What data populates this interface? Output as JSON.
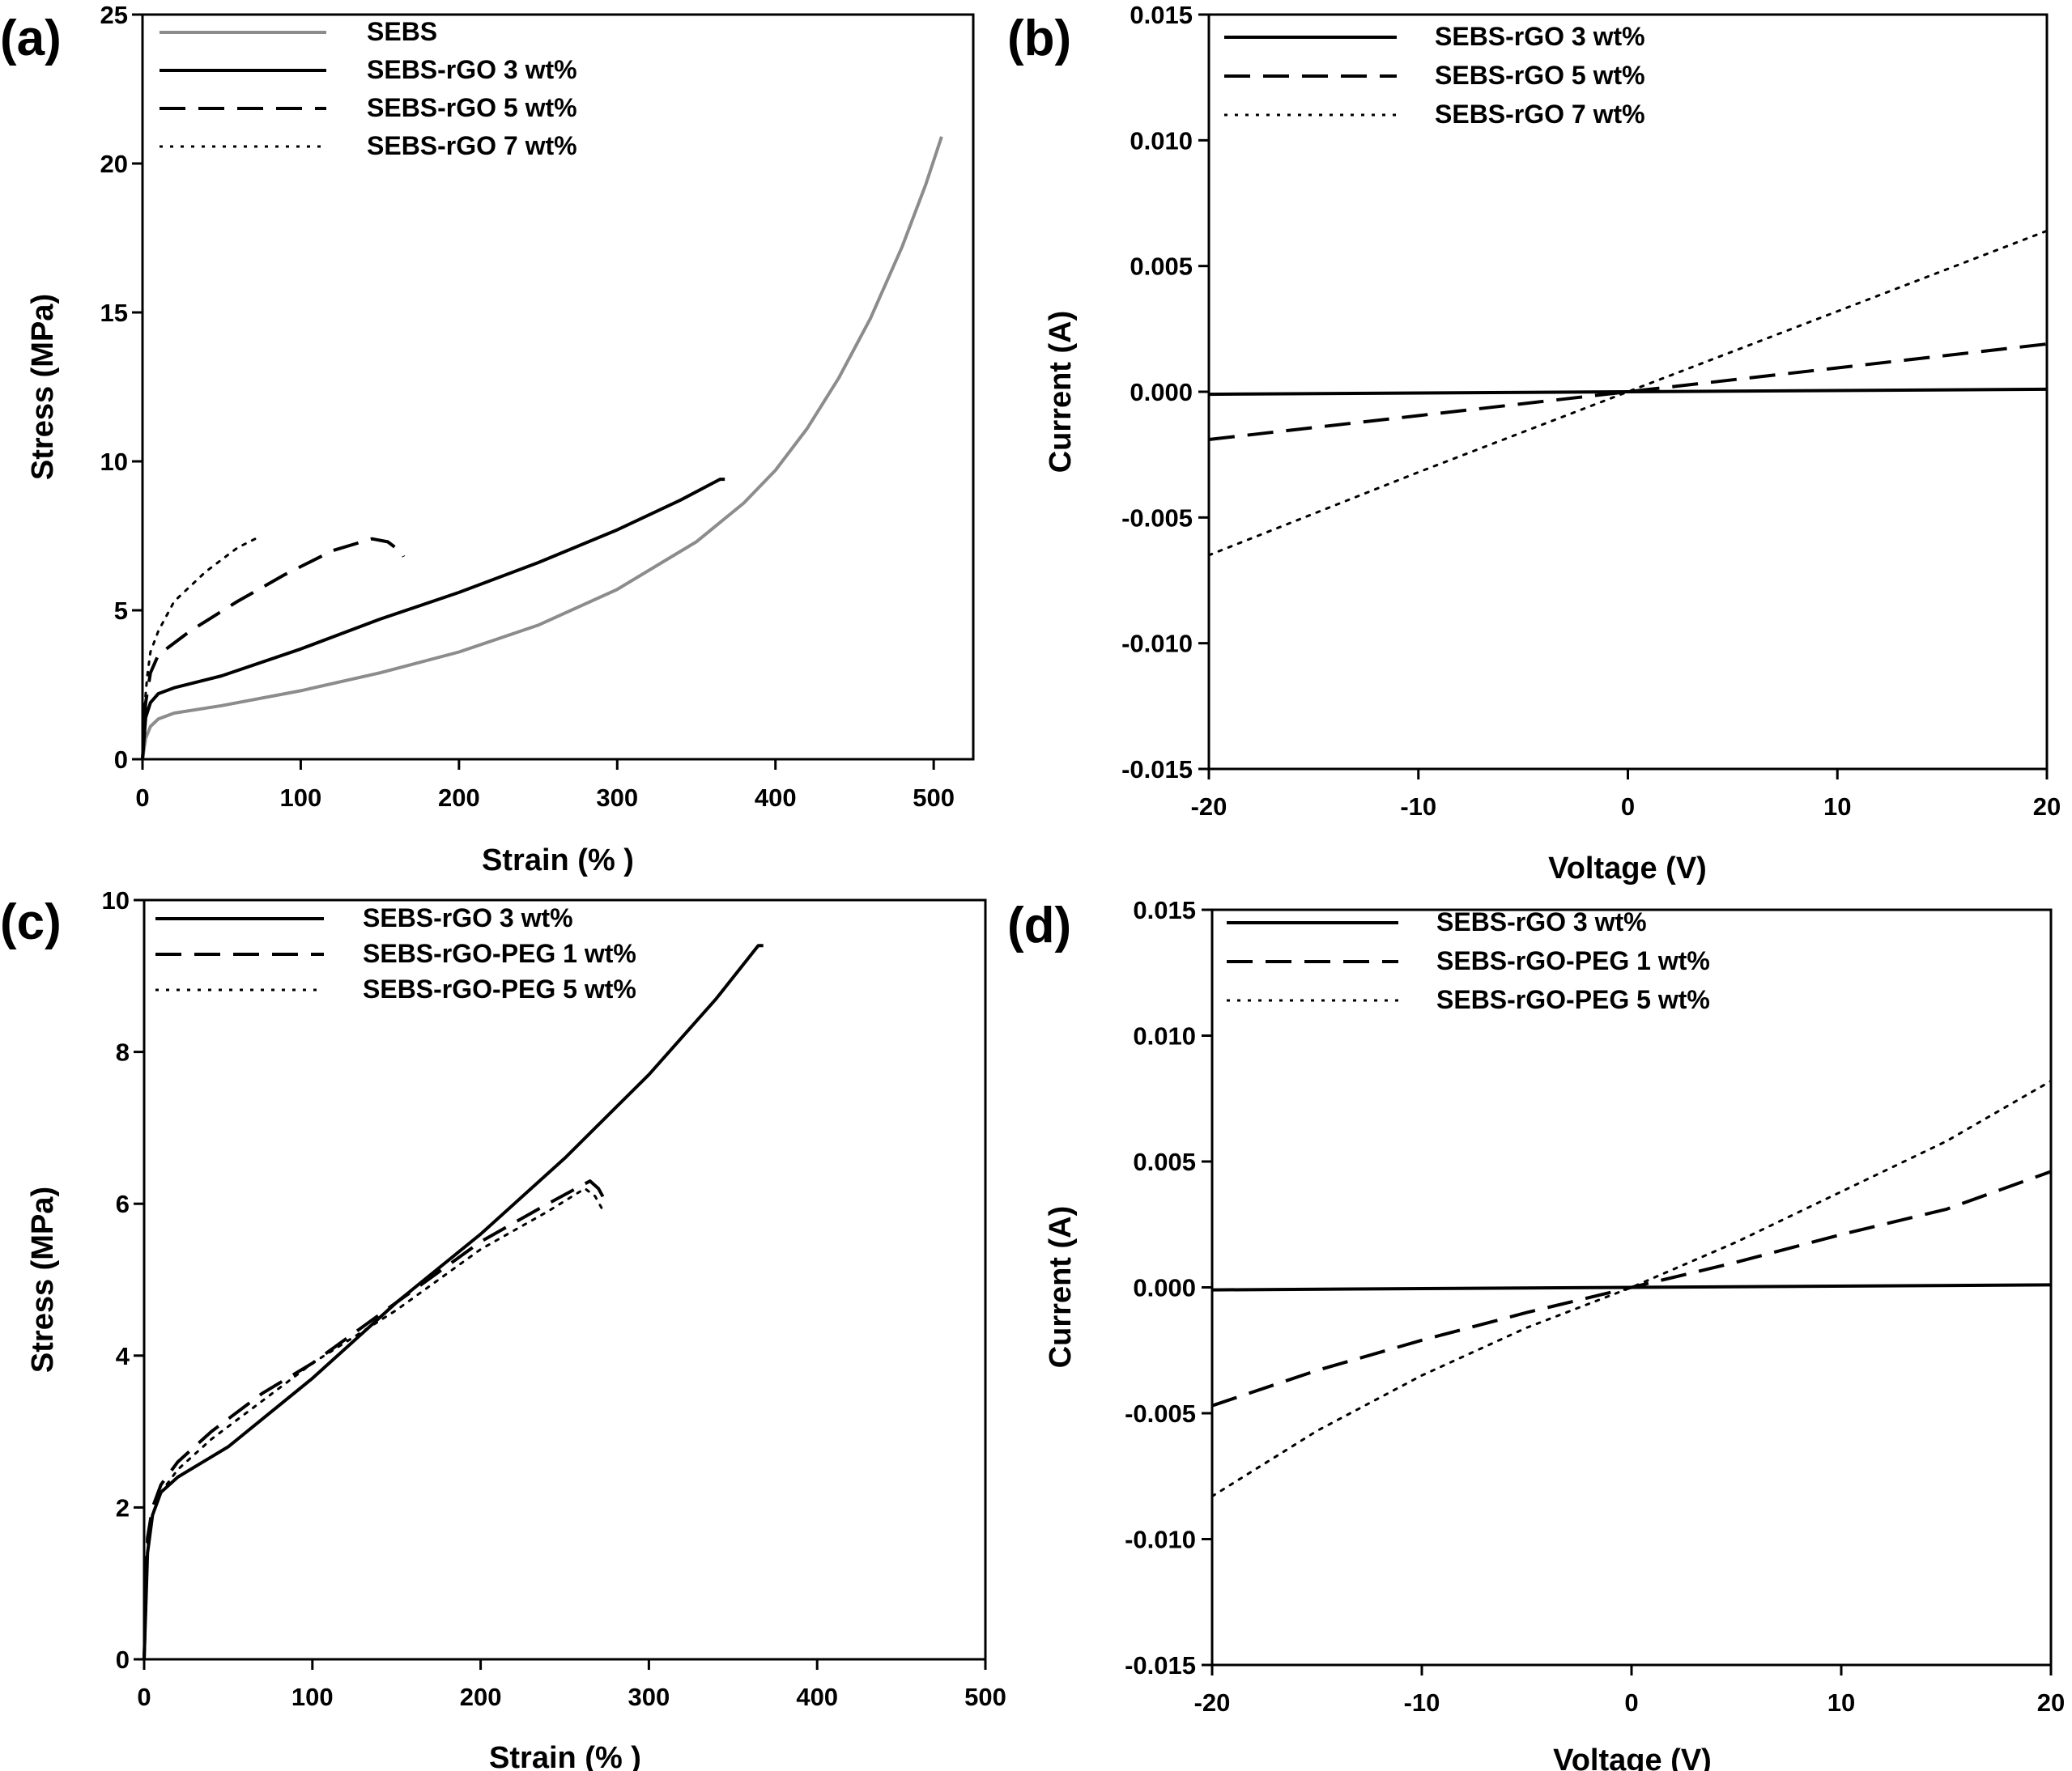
{
  "chart_data": [
    {
      "id": "a",
      "panel_label": "(a)",
      "type": "line",
      "xlabel": "Strain (% )",
      "ylabel": "Stress (MPa)",
      "xlim": [
        0,
        525
      ],
      "ylim": [
        0,
        25
      ],
      "xticks": [
        0,
        100,
        200,
        300,
        400,
        500
      ],
      "yticks": [
        0,
        5,
        10,
        15,
        20,
        25
      ],
      "xtick_labels": [
        "0",
        "100",
        "200",
        "300",
        "400",
        "500"
      ],
      "ytick_labels": [
        "0",
        "5",
        "10",
        "15",
        "20",
        "25"
      ],
      "legend_position": "top-left",
      "grid": false,
      "series": [
        {
          "name": "SEBS",
          "style": "solid",
          "color": "#8c8c8c",
          "x": [
            0,
            2,
            5,
            10,
            20,
            50,
            100,
            150,
            200,
            250,
            300,
            350,
            380,
            400,
            420,
            440,
            460,
            480,
            495,
            505
          ],
          "y": [
            0,
            0.7,
            1.1,
            1.35,
            1.55,
            1.8,
            2.3,
            2.9,
            3.6,
            4.5,
            5.7,
            7.3,
            8.6,
            9.7,
            11.1,
            12.8,
            14.8,
            17.2,
            19.3,
            20.9
          ]
        },
        {
          "name": "SEBS-rGO 3 wt%",
          "style": "solid",
          "color": "#000000",
          "x": [
            0,
            2,
            5,
            10,
            20,
            50,
            100,
            150,
            200,
            250,
            300,
            340,
            365,
            368
          ],
          "y": [
            0,
            1.4,
            1.9,
            2.2,
            2.4,
            2.8,
            3.7,
            4.7,
            5.6,
            6.6,
            7.7,
            8.7,
            9.4,
            9.4
          ]
        },
        {
          "name": "SEBS-rGO 5 wt%",
          "style": "dashed",
          "color": "#000000",
          "x": [
            0,
            2,
            5,
            10,
            15,
            30,
            60,
            90,
            120,
            145,
            155,
            160,
            163,
            165
          ],
          "y": [
            0,
            1.9,
            2.9,
            3.5,
            3.7,
            4.3,
            5.3,
            6.2,
            7.0,
            7.4,
            7.3,
            7.1,
            7.0,
            6.8
          ]
        },
        {
          "name": "SEBS-rGO 7 wt%",
          "style": "dotted",
          "color": "#000000",
          "x": [
            0,
            1,
            3,
            5,
            10,
            20,
            40,
            60,
            75
          ],
          "y": [
            0,
            1.6,
            2.8,
            3.6,
            4.3,
            5.3,
            6.3,
            7.1,
            7.5
          ]
        }
      ]
    },
    {
      "id": "b",
      "panel_label": "(b)",
      "type": "line",
      "xlabel": "Voltage (V)",
      "ylabel": "Current (A)",
      "xlim": [
        -20,
        20
      ],
      "ylim": [
        -0.015,
        0.015
      ],
      "xticks": [
        -20,
        -10,
        0,
        10,
        20
      ],
      "yticks": [
        -0.015,
        -0.01,
        -0.005,
        0,
        0.005,
        0.01,
        0.015
      ],
      "xtick_labels": [
        "-20",
        "-10",
        "0",
        "10",
        "20"
      ],
      "ytick_labels": [
        "-0.015",
        "-0.010",
        "-0.005",
        "0.000",
        "0.005",
        "0.010",
        "0.015"
      ],
      "legend_position": "top-left",
      "grid": false,
      "series": [
        {
          "name": "SEBS-rGO 3 wt%",
          "style": "solid",
          "color": "#000000",
          "x": [
            -20,
            0,
            20
          ],
          "y": [
            -0.0001,
            0,
            0.0001
          ]
        },
        {
          "name": "SEBS-rGO 5 wt%",
          "style": "dashed",
          "color": "#000000",
          "x": [
            -20,
            -10,
            0,
            10,
            20
          ],
          "y": [
            -0.0019,
            -0.00095,
            0,
            0.00095,
            0.0019
          ]
        },
        {
          "name": "SEBS-rGO 7 wt%",
          "style": "dotted",
          "color": "#000000",
          "x": [
            -20,
            -10,
            0,
            10,
            20
          ],
          "y": [
            -0.0065,
            -0.0032,
            0,
            0.0032,
            0.0064
          ]
        }
      ]
    },
    {
      "id": "c",
      "panel_label": "(c)",
      "type": "line",
      "xlabel": "Strain (% )",
      "ylabel": "Stress (MPa)",
      "xlim": [
        0,
        500
      ],
      "ylim": [
        0,
        10
      ],
      "xticks": [
        0,
        100,
        200,
        300,
        400,
        500
      ],
      "yticks": [
        0,
        2,
        4,
        6,
        8,
        10
      ],
      "xtick_labels": [
        "0",
        "100",
        "200",
        "300",
        "400",
        "500"
      ],
      "ytick_labels": [
        "0",
        "2",
        "4",
        "6",
        "8",
        "10"
      ],
      "legend_position": "top-left",
      "grid": false,
      "series": [
        {
          "name": "SEBS-rGO 3 wt%",
          "style": "solid",
          "color": "#000000",
          "x": [
            0,
            2,
            5,
            10,
            20,
            50,
            100,
            150,
            200,
            250,
            300,
            340,
            365,
            368
          ],
          "y": [
            0,
            1.4,
            1.9,
            2.2,
            2.4,
            2.8,
            3.7,
            4.7,
            5.6,
            6.6,
            7.7,
            8.7,
            9.4,
            9.4
          ]
        },
        {
          "name": "SEBS-rGO-PEG 1 wt%",
          "style": "dashed",
          "color": "#000000",
          "x": [
            0,
            2,
            5,
            10,
            20,
            40,
            70,
            100,
            150,
            200,
            240,
            265,
            270,
            275
          ],
          "y": [
            0,
            1.6,
            2.0,
            2.3,
            2.6,
            3.0,
            3.5,
            3.9,
            4.7,
            5.5,
            6.0,
            6.3,
            6.2,
            6.0
          ]
        },
        {
          "name": "SEBS-rGO-PEG 5 wt%",
          "style": "dotted",
          "color": "#000000",
          "x": [
            0,
            2,
            5,
            10,
            20,
            40,
            70,
            100,
            150,
            200,
            240,
            262,
            268,
            273
          ],
          "y": [
            0,
            1.5,
            1.9,
            2.2,
            2.5,
            2.9,
            3.4,
            3.9,
            4.6,
            5.4,
            5.9,
            6.2,
            6.1,
            5.9
          ]
        }
      ]
    },
    {
      "id": "d",
      "panel_label": "(d)",
      "type": "line",
      "xlabel": "Voltage (V)",
      "ylabel": "Current (A)",
      "xlim": [
        -20,
        20
      ],
      "ylim": [
        -0.015,
        0.015
      ],
      "xticks": [
        -20,
        -10,
        0,
        10,
        20
      ],
      "yticks": [
        -0.015,
        -0.01,
        -0.005,
        0,
        0.005,
        0.01,
        0.015
      ],
      "xtick_labels": [
        "-20",
        "-10",
        "0",
        "10",
        "20"
      ],
      "ytick_labels": [
        "-0.015",
        "-0.010",
        "-0.005",
        "0.000",
        "0.005",
        "0.010",
        "0.015"
      ],
      "legend_position": "top-left",
      "grid": false,
      "series": [
        {
          "name": "SEBS-rGO 3 wt%",
          "style": "solid",
          "color": "#000000",
          "x": [
            -20,
            0,
            20
          ],
          "y": [
            -0.0001,
            0,
            0.0001
          ]
        },
        {
          "name": "SEBS-rGO-PEG 1 wt%",
          "style": "dashed",
          "color": "#000000",
          "x": [
            -20,
            -15,
            -10,
            -5,
            0,
            5,
            10,
            15,
            20
          ],
          "y": [
            -0.0047,
            -0.0033,
            -0.0021,
            -0.001,
            0,
            0.001,
            0.0021,
            0.0031,
            0.0046
          ]
        },
        {
          "name": "SEBS-rGO-PEG 5 wt%",
          "style": "dotted",
          "color": "#000000",
          "x": [
            -20,
            -15,
            -10,
            -5,
            0,
            5,
            10,
            15,
            20
          ],
          "y": [
            -0.0083,
            -0.0057,
            -0.0035,
            -0.0016,
            0,
            0.0018,
            0.0038,
            0.0058,
            0.0082
          ]
        }
      ]
    }
  ]
}
